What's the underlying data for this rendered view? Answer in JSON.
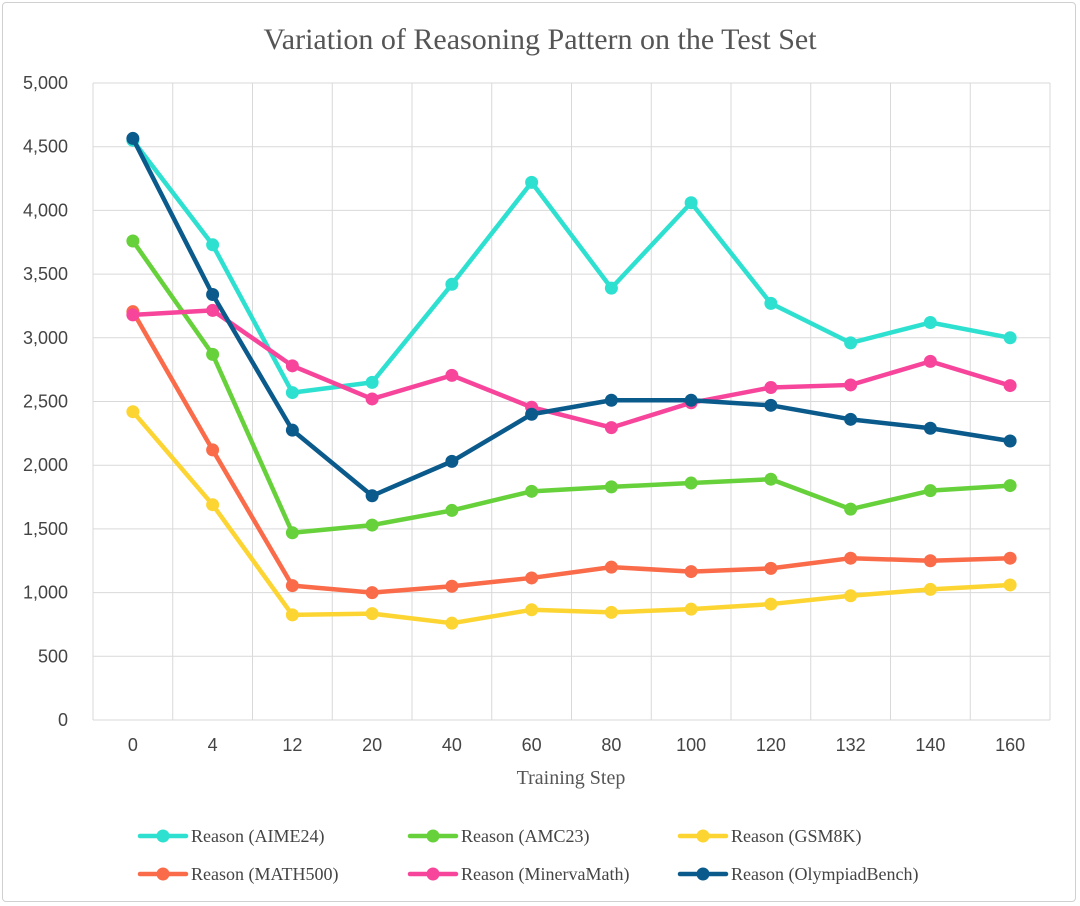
{
  "chart_data": {
    "type": "line",
    "title": "Variation of Reasoning Pattern on the Test Set",
    "xlabel": "Training Step",
    "ylabel": "",
    "categories": [
      "0",
      "4",
      "12",
      "20",
      "40",
      "60",
      "80",
      "100",
      "120",
      "132",
      "140",
      "160"
    ],
    "ylim": [
      0,
      5000
    ],
    "yticks": [
      "0",
      "500",
      "1,000",
      "1,500",
      "2,000",
      "2,500",
      "3,000",
      "3,500",
      "4,000",
      "4,500",
      "5,000"
    ],
    "ytick_values": [
      0,
      500,
      1000,
      1500,
      2000,
      2500,
      3000,
      3500,
      4000,
      4500,
      5000
    ],
    "grid": true,
    "legend_position": "bottom",
    "series": [
      {
        "name": "Reason (AIME24)",
        "color": "#2ee0d0",
        "values": [
          4550,
          3730,
          2570,
          2650,
          3420,
          4220,
          3390,
          4060,
          3270,
          2960,
          3120,
          3000
        ]
      },
      {
        "name": "Reason (AMC23)",
        "color": "#66d13a",
        "values": [
          3760,
          2870,
          1470,
          1530,
          1645,
          1795,
          1830,
          1860,
          1890,
          1655,
          1800,
          1840
        ]
      },
      {
        "name": "Reason (GSM8K)",
        "color": "#fcd533",
        "values": [
          2420,
          1690,
          825,
          835,
          760,
          865,
          845,
          870,
          910,
          975,
          1025,
          1060
        ]
      },
      {
        "name": "Reason (MATH500)",
        "color": "#fa6b4a",
        "values": [
          3205,
          2120,
          1055,
          1000,
          1050,
          1115,
          1200,
          1165,
          1190,
          1270,
          1250,
          1270
        ]
      },
      {
        "name": "Reason (MinervaMath)",
        "color": "#f7459b",
        "values": [
          3180,
          3215,
          2780,
          2520,
          2705,
          2455,
          2295,
          2490,
          2610,
          2630,
          2815,
          2625
        ]
      },
      {
        "name": "Reason (OlympiadBench)",
        "color": "#0b5a8c",
        "values": [
          4565,
          3340,
          2275,
          1760,
          2030,
          2400,
          2510,
          2510,
          2470,
          2360,
          2290,
          2190
        ]
      }
    ]
  }
}
